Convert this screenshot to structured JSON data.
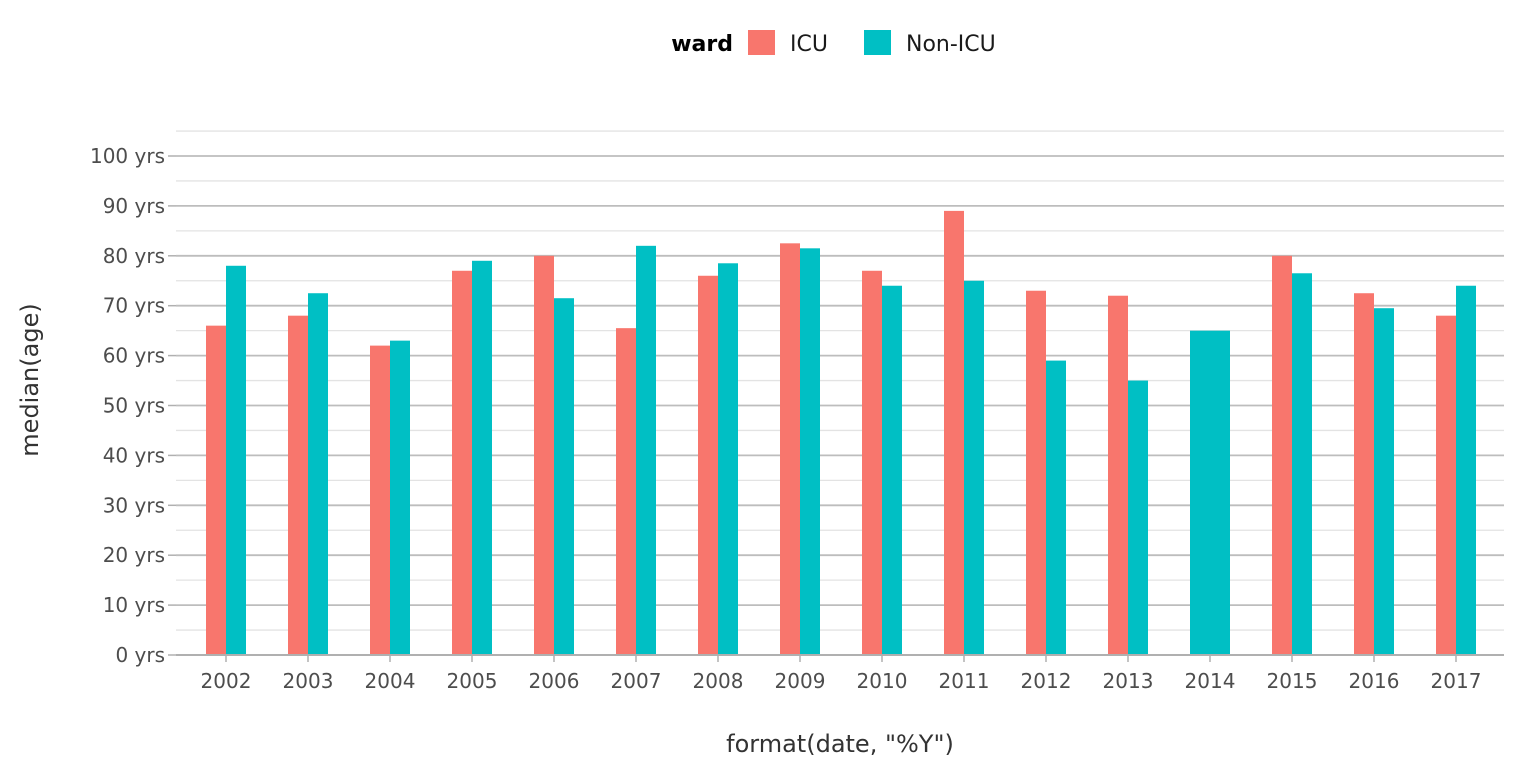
{
  "chart_data": {
    "type": "bar",
    "xlabel": "format(date, \"%Y\")",
    "ylabel": "median(age)",
    "y_suffix": " yrs",
    "ylim": [
      0,
      110
    ],
    "y_ticks": [
      0,
      10,
      20,
      30,
      40,
      50,
      60,
      70,
      80,
      90,
      100
    ],
    "y_tick_labels": [
      "0 yrs",
      "10 yrs",
      "20 yrs",
      "30 yrs",
      "40 yrs",
      "50 yrs",
      "60 yrs",
      "70 yrs",
      "80 yrs",
      "90 yrs",
      "100 yrs"
    ],
    "grid": true,
    "legend": {
      "title": "ward",
      "position": "top"
    },
    "categories": [
      "2002",
      "2003",
      "2004",
      "2005",
      "2006",
      "2007",
      "2008",
      "2009",
      "2010",
      "2011",
      "2012",
      "2013",
      "2014",
      "2015",
      "2016",
      "2017"
    ],
    "series": [
      {
        "name": "ICU",
        "color": "#F8766D",
        "values": [
          66,
          68,
          62,
          77,
          80,
          65.5,
          76,
          82.5,
          77,
          89,
          73,
          72,
          null,
          80,
          72.5,
          68
        ]
      },
      {
        "name": "Non-ICU",
        "color": "#00BFC4",
        "values": [
          78,
          72.5,
          63,
          79,
          71.5,
          82,
          78.5,
          81.5,
          74,
          75,
          59,
          55,
          65,
          76.5,
          69.5,
          74
        ]
      }
    ]
  }
}
